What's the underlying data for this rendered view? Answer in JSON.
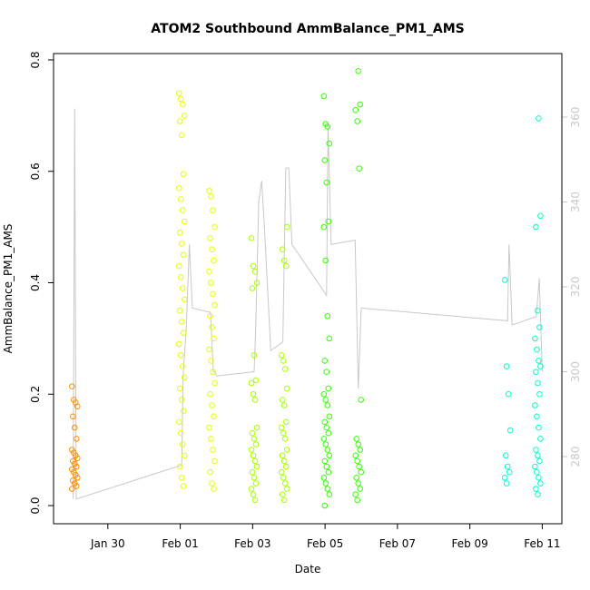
{
  "chart_data": {
    "type": "scatter",
    "title": "ATOM2 Southbound AmmBalance_PM1_AMS",
    "xlabel": "Date",
    "ylabel": "AmmBalance_PM1_AMS",
    "x_ticks": [
      "Jan 30",
      "Feb 01",
      "Feb 03",
      "Feb 05",
      "Feb 07",
      "Feb 09",
      "Feb 11"
    ],
    "y_ticks": [
      "0.0",
      "0.2",
      "0.4",
      "0.6",
      "0.8"
    ],
    "y2_ticks": [
      "280",
      "300",
      "320",
      "340",
      "360"
    ],
    "ylim": [
      0,
      0.8
    ],
    "y2lim": [
      268,
      368
    ],
    "xlim_days": [
      "2019-01-28 12:00",
      "2019-02-11 13:00"
    ],
    "grid": false,
    "series": [
      {
        "color": "#ff8c00",
        "points": [
          [
            "2019-01-29 02:00",
            0.214
          ],
          [
            "2019-01-29 02:00",
            0.19
          ],
          [
            "2019-01-29 02:00",
            0.185
          ],
          [
            "2019-01-29 02:00",
            0.178
          ],
          [
            "2019-01-29 02:00",
            0.16
          ],
          [
            "2019-01-29 02:00",
            0.14
          ],
          [
            "2019-01-29 02:00",
            0.12
          ],
          [
            "2019-01-29 02:00",
            0.1
          ],
          [
            "2019-01-29 02:00",
            0.095
          ],
          [
            "2019-01-29 02:00",
            0.09
          ],
          [
            "2019-01-29 02:00",
            0.085
          ],
          [
            "2019-01-29 02:00",
            0.08
          ],
          [
            "2019-01-29 02:00",
            0.075
          ],
          [
            "2019-01-29 02:00",
            0.07
          ],
          [
            "2019-01-29 02:00",
            0.065
          ],
          [
            "2019-01-29 02:00",
            0.06
          ],
          [
            "2019-01-29 02:00",
            0.055
          ],
          [
            "2019-01-29 02:00",
            0.05
          ],
          [
            "2019-01-29 02:00",
            0.045
          ],
          [
            "2019-01-29 02:00",
            0.04
          ],
          [
            "2019-01-29 02:00",
            0.035
          ],
          [
            "2019-01-29 02:00",
            0.03
          ]
        ]
      },
      {
        "color": "#e6ff00",
        "points": [
          [
            "2019-02-01 01:00",
            0.74
          ],
          [
            "2019-02-01 01:00",
            0.73
          ],
          [
            "2019-02-01 01:00",
            0.72
          ],
          [
            "2019-02-01 01:00",
            0.7
          ],
          [
            "2019-02-01 01:00",
            0.69
          ],
          [
            "2019-02-01 01:00",
            0.665
          ],
          [
            "2019-02-01 01:00",
            0.595
          ],
          [
            "2019-02-01 01:00",
            0.57
          ],
          [
            "2019-02-01 01:00",
            0.55
          ],
          [
            "2019-02-01 01:00",
            0.53
          ],
          [
            "2019-02-01 01:00",
            0.51
          ],
          [
            "2019-02-01 01:00",
            0.49
          ],
          [
            "2019-02-01 01:00",
            0.47
          ],
          [
            "2019-02-01 01:00",
            0.45
          ],
          [
            "2019-02-01 01:00",
            0.43
          ],
          [
            "2019-02-01 01:00",
            0.41
          ],
          [
            "2019-02-01 01:00",
            0.39
          ],
          [
            "2019-02-01 01:00",
            0.37
          ],
          [
            "2019-02-01 01:00",
            0.35
          ],
          [
            "2019-02-01 01:00",
            0.33
          ],
          [
            "2019-02-01 01:00",
            0.31
          ],
          [
            "2019-02-01 01:00",
            0.29
          ],
          [
            "2019-02-01 01:00",
            0.27
          ],
          [
            "2019-02-01 01:00",
            0.25
          ],
          [
            "2019-02-01 01:00",
            0.23
          ],
          [
            "2019-02-01 01:00",
            0.21
          ],
          [
            "2019-02-01 01:00",
            0.19
          ],
          [
            "2019-02-01 01:00",
            0.17
          ],
          [
            "2019-02-01 01:00",
            0.15
          ],
          [
            "2019-02-01 01:00",
            0.13
          ],
          [
            "2019-02-01 01:00",
            0.11
          ],
          [
            "2019-02-01 01:00",
            0.09
          ],
          [
            "2019-02-01 01:00",
            0.07
          ],
          [
            "2019-02-01 01:00",
            0.05
          ],
          [
            "2019-02-01 01:00",
            0.035
          ],
          [
            "2019-02-01 21:00",
            0.565
          ],
          [
            "2019-02-01 21:00",
            0.555
          ],
          [
            "2019-02-01 21:00",
            0.53
          ],
          [
            "2019-02-01 21:00",
            0.5
          ],
          [
            "2019-02-01 21:00",
            0.48
          ],
          [
            "2019-02-01 21:00",
            0.46
          ],
          [
            "2019-02-01 21:00",
            0.44
          ],
          [
            "2019-02-01 21:00",
            0.42
          ],
          [
            "2019-02-01 21:00",
            0.4
          ],
          [
            "2019-02-01 21:00",
            0.38
          ],
          [
            "2019-02-01 21:00",
            0.36
          ],
          [
            "2019-02-01 21:00",
            0.34
          ],
          [
            "2019-02-01 21:00",
            0.32
          ],
          [
            "2019-02-01 21:00",
            0.3
          ],
          [
            "2019-02-01 21:00",
            0.28
          ],
          [
            "2019-02-01 21:00",
            0.26
          ],
          [
            "2019-02-01 21:00",
            0.24
          ],
          [
            "2019-02-01 21:00",
            0.22
          ],
          [
            "2019-02-01 21:00",
            0.2
          ],
          [
            "2019-02-01 21:00",
            0.18
          ],
          [
            "2019-02-01 21:00",
            0.16
          ],
          [
            "2019-02-01 21:00",
            0.14
          ],
          [
            "2019-02-01 21:00",
            0.12
          ],
          [
            "2019-02-01 21:00",
            0.1
          ],
          [
            "2019-02-01 21:00",
            0.08
          ],
          [
            "2019-02-01 21:00",
            0.06
          ],
          [
            "2019-02-01 21:00",
            0.04
          ],
          [
            "2019-02-01 21:00",
            0.03
          ]
        ]
      },
      {
        "color": "#a6ff00",
        "points": [
          [
            "2019-02-03 01:00",
            0.48
          ],
          [
            "2019-02-03 01:00",
            0.43
          ],
          [
            "2019-02-03 01:00",
            0.42
          ],
          [
            "2019-02-03 01:00",
            0.4
          ],
          [
            "2019-02-03 01:00",
            0.39
          ],
          [
            "2019-02-03 01:00",
            0.27
          ],
          [
            "2019-02-03 01:00",
            0.225
          ],
          [
            "2019-02-03 01:00",
            0.22
          ],
          [
            "2019-02-03 01:00",
            0.2
          ],
          [
            "2019-02-03 01:00",
            0.19
          ],
          [
            "2019-02-03 01:00",
            0.14
          ],
          [
            "2019-02-03 01:00",
            0.13
          ],
          [
            "2019-02-03 01:00",
            0.12
          ],
          [
            "2019-02-03 01:00",
            0.11
          ],
          [
            "2019-02-03 01:00",
            0.1
          ],
          [
            "2019-02-03 01:00",
            0.09
          ],
          [
            "2019-02-03 01:00",
            0.08
          ],
          [
            "2019-02-03 01:00",
            0.07
          ],
          [
            "2019-02-03 01:00",
            0.06
          ],
          [
            "2019-02-03 01:00",
            0.05
          ],
          [
            "2019-02-03 01:00",
            0.04
          ],
          [
            "2019-02-03 01:00",
            0.03
          ],
          [
            "2019-02-03 01:00",
            0.02
          ],
          [
            "2019-02-03 01:00",
            0.01
          ],
          [
            "2019-02-03 21:00",
            0.5
          ],
          [
            "2019-02-03 21:00",
            0.46
          ],
          [
            "2019-02-03 21:00",
            0.44
          ],
          [
            "2019-02-03 21:00",
            0.43
          ],
          [
            "2019-02-03 21:00",
            0.27
          ],
          [
            "2019-02-03 21:00",
            0.26
          ],
          [
            "2019-02-03 21:00",
            0.245
          ],
          [
            "2019-02-03 21:00",
            0.21
          ],
          [
            "2019-02-03 21:00",
            0.19
          ],
          [
            "2019-02-03 21:00",
            0.18
          ],
          [
            "2019-02-03 21:00",
            0.15
          ],
          [
            "2019-02-03 21:00",
            0.14
          ],
          [
            "2019-02-03 21:00",
            0.13
          ],
          [
            "2019-02-03 21:00",
            0.12
          ],
          [
            "2019-02-03 21:00",
            0.1
          ],
          [
            "2019-02-03 21:00",
            0.09
          ],
          [
            "2019-02-03 21:00",
            0.08
          ],
          [
            "2019-02-03 21:00",
            0.07
          ],
          [
            "2019-02-03 21:00",
            0.06
          ],
          [
            "2019-02-03 21:00",
            0.05
          ],
          [
            "2019-02-03 21:00",
            0.04
          ],
          [
            "2019-02-03 21:00",
            0.03
          ],
          [
            "2019-02-03 21:00",
            0.02
          ],
          [
            "2019-02-03 21:00",
            0.01
          ]
        ]
      },
      {
        "color": "#33ff00",
        "points": [
          [
            "2019-02-05 01:00",
            0.735
          ],
          [
            "2019-02-05 01:00",
            0.685
          ],
          [
            "2019-02-05 01:00",
            0.68
          ],
          [
            "2019-02-05 01:00",
            0.65
          ],
          [
            "2019-02-05 01:00",
            0.62
          ],
          [
            "2019-02-05 01:00",
            0.58
          ],
          [
            "2019-02-05 01:00",
            0.51
          ],
          [
            "2019-02-05 01:00",
            0.5
          ],
          [
            "2019-02-05 01:00",
            0.44
          ],
          [
            "2019-02-05 01:00",
            0.34
          ],
          [
            "2019-02-05 01:00",
            0.3
          ],
          [
            "2019-02-05 01:00",
            0.26
          ],
          [
            "2019-02-05 01:00",
            0.24
          ],
          [
            "2019-02-05 01:00",
            0.21
          ],
          [
            "2019-02-05 01:00",
            0.2
          ],
          [
            "2019-02-05 01:00",
            0.19
          ],
          [
            "2019-02-05 01:00",
            0.18
          ],
          [
            "2019-02-05 01:00",
            0.16
          ],
          [
            "2019-02-05 01:00",
            0.15
          ],
          [
            "2019-02-05 01:00",
            0.14
          ],
          [
            "2019-02-05 01:00",
            0.13
          ],
          [
            "2019-02-05 01:00",
            0.12
          ],
          [
            "2019-02-05 01:00",
            0.11
          ],
          [
            "2019-02-05 01:00",
            0.1
          ],
          [
            "2019-02-05 01:00",
            0.09
          ],
          [
            "2019-02-05 01:00",
            0.08
          ],
          [
            "2019-02-05 01:00",
            0.07
          ],
          [
            "2019-02-05 01:00",
            0.06
          ],
          [
            "2019-02-05 01:00",
            0.05
          ],
          [
            "2019-02-05 01:00",
            0.04
          ],
          [
            "2019-02-05 01:00",
            0.03
          ],
          [
            "2019-02-05 01:00",
            0.02
          ],
          [
            "2019-02-05 01:00",
            0.0
          ],
          [
            "2019-02-05 22:00",
            0.78
          ],
          [
            "2019-02-05 22:00",
            0.72
          ],
          [
            "2019-02-05 22:00",
            0.71
          ],
          [
            "2019-02-05 22:00",
            0.69
          ],
          [
            "2019-02-05 22:00",
            0.605
          ],
          [
            "2019-02-05 22:00",
            0.19
          ],
          [
            "2019-02-05 22:00",
            0.12
          ],
          [
            "2019-02-05 22:00",
            0.11
          ],
          [
            "2019-02-05 22:00",
            0.1
          ],
          [
            "2019-02-05 22:00",
            0.09
          ],
          [
            "2019-02-05 22:00",
            0.08
          ],
          [
            "2019-02-05 22:00",
            0.07
          ],
          [
            "2019-02-05 22:00",
            0.06
          ],
          [
            "2019-02-05 22:00",
            0.05
          ],
          [
            "2019-02-05 22:00",
            0.04
          ],
          [
            "2019-02-05 22:00",
            0.03
          ],
          [
            "2019-02-05 22:00",
            0.02
          ],
          [
            "2019-02-05 22:00",
            0.01
          ]
        ]
      },
      {
        "color": "#00ffcc",
        "points": [
          [
            "2019-02-10 01:00",
            0.405
          ],
          [
            "2019-02-10 01:00",
            0.25
          ],
          [
            "2019-02-10 01:00",
            0.2
          ],
          [
            "2019-02-10 01:00",
            0.135
          ],
          [
            "2019-02-10 01:00",
            0.09
          ],
          [
            "2019-02-10 01:00",
            0.07
          ],
          [
            "2019-02-10 01:00",
            0.06
          ],
          [
            "2019-02-10 01:00",
            0.05
          ],
          [
            "2019-02-10 01:00",
            0.04
          ],
          [
            "2019-02-10 21:00",
            0.695
          ],
          [
            "2019-02-10 21:00",
            0.52
          ],
          [
            "2019-02-10 21:00",
            0.5
          ],
          [
            "2019-02-10 21:00",
            0.35
          ],
          [
            "2019-02-10 21:00",
            0.32
          ],
          [
            "2019-02-10 21:00",
            0.3
          ],
          [
            "2019-02-10 21:00",
            0.28
          ],
          [
            "2019-02-10 21:00",
            0.26
          ],
          [
            "2019-02-10 21:00",
            0.25
          ],
          [
            "2019-02-10 21:00",
            0.24
          ],
          [
            "2019-02-10 21:00",
            0.22
          ],
          [
            "2019-02-10 21:00",
            0.2
          ],
          [
            "2019-02-10 21:00",
            0.18
          ],
          [
            "2019-02-10 21:00",
            0.16
          ],
          [
            "2019-02-10 21:00",
            0.14
          ],
          [
            "2019-02-10 21:00",
            0.12
          ],
          [
            "2019-02-10 21:00",
            0.1
          ],
          [
            "2019-02-10 21:00",
            0.09
          ],
          [
            "2019-02-10 21:00",
            0.08
          ],
          [
            "2019-02-10 21:00",
            0.07
          ],
          [
            "2019-02-10 21:00",
            0.06
          ],
          [
            "2019-02-10 21:00",
            0.05
          ],
          [
            "2019-02-10 21:00",
            0.04
          ],
          [
            "2019-02-10 21:00",
            0.03
          ],
          [
            "2019-02-10 21:00",
            0.02
          ]
        ]
      }
    ],
    "y2_line": {
      "color": "#c8c8c8",
      "points": [
        [
          "2019-01-29 01:00",
          270
        ],
        [
          "2019-01-29 02:00",
          362
        ],
        [
          "2019-01-29 03:00",
          270
        ],
        [
          "2019-02-01 01:00",
          278
        ],
        [
          "2019-02-01 02:00",
          300
        ],
        [
          "2019-02-01 04:00",
          310
        ],
        [
          "2019-02-01 06:00",
          330
        ],
        [
          "2019-02-01 08:00",
          315
        ],
        [
          "2019-02-01 20:00",
          314
        ],
        [
          "2019-02-01 22:00",
          300
        ],
        [
          "2019-02-01 23:00",
          300
        ],
        [
          "2019-02-02 00:00",
          299
        ],
        [
          "2019-02-03 01:00",
          300
        ],
        [
          "2019-02-03 02:00",
          310
        ],
        [
          "2019-02-03 04:00",
          340
        ],
        [
          "2019-02-03 06:00",
          345
        ],
        [
          "2019-02-03 08:00",
          333
        ],
        [
          "2019-02-03 12:00",
          305
        ],
        [
          "2019-02-03 20:00",
          307
        ],
        [
          "2019-02-03 22:00",
          348
        ],
        [
          "2019-02-04 00:00",
          348
        ],
        [
          "2019-02-04 02:00",
          330
        ],
        [
          "2019-02-05 01:00",
          318
        ],
        [
          "2019-02-05 02:00",
          358
        ],
        [
          "2019-02-05 04:00",
          330
        ],
        [
          "2019-02-05 20:00",
          331
        ],
        [
          "2019-02-05 22:00",
          296
        ],
        [
          "2019-02-06 00:00",
          315
        ],
        [
          "2019-02-10 01:00",
          312
        ],
        [
          "2019-02-10 02:00",
          330
        ],
        [
          "2019-02-10 04:00",
          311
        ],
        [
          "2019-02-10 20:00",
          313
        ],
        [
          "2019-02-10 22:00",
          322
        ],
        [
          "2019-02-11 00:00",
          300
        ]
      ]
    }
  }
}
